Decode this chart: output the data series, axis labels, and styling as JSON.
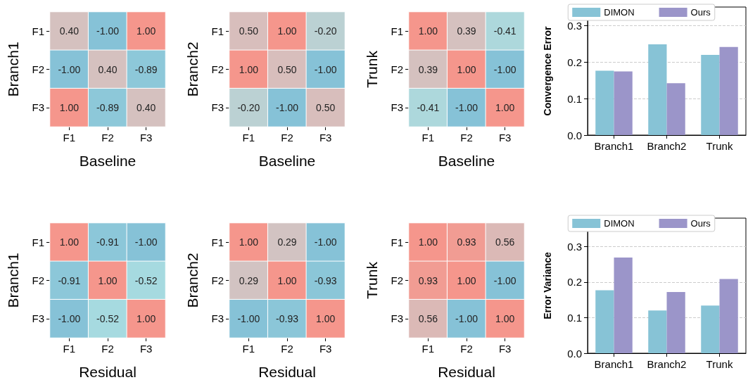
{
  "chart_data": [
    {
      "type": "heatmap",
      "ylabel": "Branch1",
      "xlabel": "Baseline",
      "categories": [
        "F1",
        "F2",
        "F3"
      ],
      "y_categories": [
        "F1",
        "F2",
        "F3"
      ],
      "cells": [
        [
          0.4,
          -1.0,
          1.0
        ],
        [
          -1.0,
          0.4,
          -0.89
        ],
        [
          1.0,
          -0.89,
          0.4
        ]
      ],
      "cell_labels": [
        [
          "0.40",
          "-1.00",
          "1.00"
        ],
        [
          "-1.00",
          "0.40",
          "-0.89"
        ],
        [
          "1.00",
          "-0.89",
          "0.40"
        ]
      ]
    },
    {
      "type": "heatmap",
      "ylabel": "Branch2",
      "xlabel": "Baseline",
      "categories": [
        "F1",
        "F2",
        "F3"
      ],
      "y_categories": [
        "F1",
        "F2",
        "F3"
      ],
      "cells": [
        [
          0.5,
          1.0,
          -0.2
        ],
        [
          1.0,
          0.5,
          -1.0
        ],
        [
          -0.2,
          -1.0,
          0.5
        ]
      ],
      "cell_labels": [
        [
          "0.50",
          "1.00",
          "-0.20"
        ],
        [
          "1.00",
          "0.50",
          "-1.00"
        ],
        [
          "-0.20",
          "-1.00",
          "0.50"
        ]
      ]
    },
    {
      "type": "heatmap",
      "ylabel": "Trunk",
      "xlabel": "Baseline",
      "categories": [
        "F1",
        "F2",
        "F3"
      ],
      "y_categories": [
        "F1",
        "F2",
        "F3"
      ],
      "cells": [
        [
          1.0,
          0.39,
          -0.41
        ],
        [
          0.39,
          1.0,
          -1.0
        ],
        [
          -0.41,
          -1.0,
          1.0
        ]
      ],
      "cell_labels": [
        [
          "1.00",
          "0.39",
          "-0.41"
        ],
        [
          "0.39",
          "1.00",
          "-1.00"
        ],
        [
          "-0.41",
          "-1.00",
          "1.00"
        ]
      ]
    },
    {
      "type": "bar",
      "ylabel": "Convergence Error",
      "categories": [
        "Branch1",
        "Branch2",
        "Trunk"
      ],
      "series": [
        {
          "name": "DIMON",
          "color": "#87c3d6",
          "values": [
            0.176,
            0.248,
            0.219
          ]
        },
        {
          "name": "Ours",
          "color": "#9b95c9",
          "values": [
            0.174,
            0.142,
            0.241
          ]
        }
      ],
      "ylim": [
        0,
        0.35
      ],
      "yticks": [
        {
          "value": 0,
          "label": "0.0"
        },
        {
          "value": 0.1,
          "label": "0.1"
        },
        {
          "value": 0.2,
          "label": "0.2"
        },
        {
          "value": 0.3,
          "label": "0.3"
        }
      ],
      "grid": "y",
      "legend": "top"
    },
    {
      "type": "heatmap",
      "ylabel": "Branch1",
      "xlabel": "Residual",
      "categories": [
        "F1",
        "F2",
        "F3"
      ],
      "y_categories": [
        "F1",
        "F2",
        "F3"
      ],
      "cells": [
        [
          1.0,
          -0.91,
          -1.0
        ],
        [
          -0.91,
          1.0,
          -0.52
        ],
        [
          -1.0,
          -0.52,
          1.0
        ]
      ],
      "cell_labels": [
        [
          "1.00",
          "-0.91",
          "-1.00"
        ],
        [
          "-0.91",
          "1.00",
          "-0.52"
        ],
        [
          "-1.00",
          "-0.52",
          "1.00"
        ]
      ]
    },
    {
      "type": "heatmap",
      "ylabel": "Branch2",
      "xlabel": "Residual",
      "categories": [
        "F1",
        "F2",
        "F3"
      ],
      "y_categories": [
        "F1",
        "F2",
        "F3"
      ],
      "cells": [
        [
          1.0,
          0.29,
          -1.0
        ],
        [
          0.29,
          1.0,
          -0.93
        ],
        [
          -1.0,
          -0.93,
          1.0
        ]
      ],
      "cell_labels": [
        [
          "1.00",
          "0.29",
          "-1.00"
        ],
        [
          "0.29",
          "1.00",
          "-0.93"
        ],
        [
          "-1.00",
          "-0.93",
          "1.00"
        ]
      ]
    },
    {
      "type": "heatmap",
      "ylabel": "Trunk",
      "xlabel": "Residual",
      "categories": [
        "F1",
        "F2",
        "F3"
      ],
      "y_categories": [
        "F1",
        "F2",
        "F3"
      ],
      "cells": [
        [
          1.0,
          0.93,
          0.56
        ],
        [
          0.93,
          1.0,
          -1.0
        ],
        [
          0.56,
          -1.0,
          1.0
        ]
      ],
      "cell_labels": [
        [
          "1.00",
          "0.93",
          "0.56"
        ],
        [
          "0.93",
          "1.00",
          "-1.00"
        ],
        [
          "0.56",
          "-1.00",
          "1.00"
        ]
      ]
    },
    {
      "type": "bar",
      "ylabel": "Error Variance",
      "categories": [
        "Branch1",
        "Branch2",
        "Trunk"
      ],
      "series": [
        {
          "name": "DIMON",
          "color": "#87c3d6",
          "values": [
            0.177,
            0.12,
            0.134
          ]
        },
        {
          "name": "Ours",
          "color": "#9b95c9",
          "values": [
            0.269,
            0.172,
            0.209
          ]
        }
      ],
      "ylim": [
        0,
        0.38
      ],
      "yticks": [
        {
          "value": 0,
          "label": "0.0"
        },
        {
          "value": 0.1,
          "label": "0.1"
        },
        {
          "value": 0.2,
          "label": "0.2"
        },
        {
          "value": 0.3,
          "label": "0.3"
        }
      ],
      "grid": "y",
      "legend": "top"
    }
  ]
}
